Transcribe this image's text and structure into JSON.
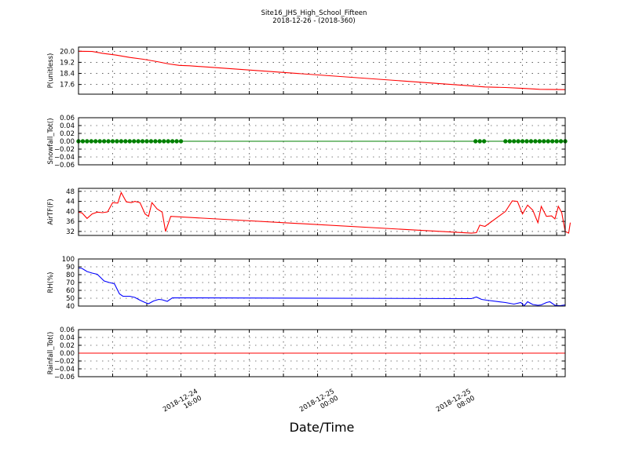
{
  "figure": {
    "title": "Site16_JHS_High_School_Fifteen",
    "subtitle": "2018-12-26 - (2018-360)",
    "xlabel": "Date/Time",
    "x_ticks": [
      {
        "x": 15.0,
        "label": [
          "2018-12-24",
          "16:00"
        ]
      },
      {
        "x": 23.0,
        "label": [
          "2018-12-25",
          "00:00"
        ]
      },
      {
        "x": 31.0,
        "label": [
          "2018-12-25",
          "08:00"
        ]
      }
    ],
    "xlim": [
      8.0,
      36.5
    ],
    "colors": {
      "red": "#ff0000",
      "green": "#008000",
      "blue": "#0000ff",
      "axis": "#000000"
    }
  },
  "chart_data": [
    {
      "type": "line",
      "ylabel": "P(unitless)",
      "ylim": [
        16.9,
        20.3
      ],
      "yticks": [
        17.6,
        18.4,
        19.2,
        20.0
      ],
      "ytick_labels": [
        "17.6",
        "18.4",
        "19.2",
        "20.0"
      ],
      "grid": true,
      "series": [
        {
          "color": "#ff0000",
          "points": [
            [
              8.0,
              20.0
            ],
            [
              8.8,
              19.98
            ],
            [
              9.4,
              19.85
            ],
            [
              10.2,
              19.72
            ],
            [
              11.0,
              19.55
            ],
            [
              11.8,
              19.42
            ],
            [
              12.6,
              19.25
            ],
            [
              13.3,
              19.08
            ],
            [
              13.9,
              18.98
            ],
            [
              14.5,
              18.95
            ],
            [
              31.0,
              17.5
            ],
            [
              31.8,
              17.42
            ],
            [
              33.0,
              17.38
            ],
            [
              34.0,
              17.32
            ],
            [
              35.0,
              17.25
            ],
            [
              36.5,
              17.23
            ]
          ]
        }
      ]
    },
    {
      "type": "line",
      "ylabel": "Snowfall_Tot()",
      "ylim": [
        -0.06,
        0.06
      ],
      "yticks": [
        -0.06,
        -0.04,
        -0.02,
        0.0,
        0.02,
        0.04,
        0.06
      ],
      "ytick_labels": [
        "−0.06",
        "−0.04",
        "−0.02",
        "0.00",
        "0.02",
        "0.04",
        "0.06"
      ],
      "grid": true,
      "series": [
        {
          "color": "#008000",
          "markers": true,
          "points": [
            [
              8.0,
              0
            ],
            [
              8.25,
              0
            ],
            [
              8.5,
              0
            ],
            [
              8.75,
              0
            ],
            [
              9.0,
              0
            ],
            [
              9.25,
              0
            ],
            [
              9.5,
              0
            ],
            [
              9.75,
              0
            ],
            [
              10.0,
              0
            ],
            [
              10.25,
              0
            ],
            [
              10.5,
              0
            ],
            [
              10.75,
              0
            ],
            [
              11.0,
              0
            ],
            [
              11.25,
              0
            ],
            [
              11.5,
              0
            ],
            [
              11.75,
              0
            ],
            [
              12.0,
              0
            ],
            [
              12.25,
              0
            ],
            [
              12.5,
              0
            ],
            [
              12.75,
              0
            ],
            [
              13.0,
              0
            ],
            [
              13.25,
              0
            ],
            [
              13.5,
              0
            ],
            [
              13.75,
              0
            ],
            [
              14.0,
              0
            ],
            [
              31.25,
              0
            ],
            [
              31.5,
              0
            ],
            [
              31.75,
              0
            ],
            [
              33.0,
              0
            ],
            [
              33.25,
              0
            ],
            [
              33.5,
              0
            ],
            [
              33.75,
              0
            ],
            [
              34.0,
              0
            ],
            [
              34.25,
              0
            ],
            [
              34.5,
              0
            ],
            [
              34.75,
              0
            ],
            [
              35.0,
              0
            ],
            [
              35.25,
              0
            ],
            [
              35.5,
              0
            ],
            [
              35.75,
              0
            ],
            [
              36.0,
              0
            ],
            [
              36.25,
              0
            ],
            [
              36.5,
              0
            ]
          ]
        }
      ]
    },
    {
      "type": "line",
      "ylabel": "AirTF(F)",
      "ylim": [
        30.4,
        49.2
      ],
      "yticks": [
        32,
        36,
        40,
        44,
        48
      ],
      "ytick_labels": [
        "32",
        "36",
        "40",
        "44",
        "48"
      ],
      "grid": true,
      "series": [
        {
          "color": "#ff0000",
          "points": [
            [
              8.0,
              39.7
            ],
            [
              8.2,
              39.4
            ],
            [
              8.5,
              37.2
            ],
            [
              8.8,
              39.0
            ],
            [
              9.1,
              39.7
            ],
            [
              9.4,
              39.5
            ],
            [
              9.7,
              39.8
            ],
            [
              10.0,
              43.5
            ],
            [
              10.3,
              43.3
            ],
            [
              10.5,
              47.5
            ],
            [
              10.8,
              43.8
            ],
            [
              11.1,
              43.5
            ],
            [
              11.3,
              44.0
            ],
            [
              11.6,
              43.5
            ],
            [
              11.9,
              39.0
            ],
            [
              12.1,
              38.0
            ],
            [
              12.3,
              43.5
            ],
            [
              12.6,
              41.0
            ],
            [
              12.9,
              39.7
            ],
            [
              13.1,
              32.0
            ],
            [
              13.4,
              38.0
            ],
            [
              31.0,
              31.3
            ],
            [
              31.3,
              31.5
            ],
            [
              31.5,
              34.5
            ],
            [
              31.8,
              34.0
            ],
            [
              33.0,
              40.0
            ],
            [
              33.4,
              44.2
            ],
            [
              33.7,
              44.0
            ],
            [
              34.0,
              39.0
            ],
            [
              34.3,
              42.5
            ],
            [
              34.6,
              40.5
            ],
            [
              34.9,
              35.5
            ],
            [
              35.1,
              42.0
            ],
            [
              35.4,
              38.0
            ],
            [
              35.7,
              38.2
            ],
            [
              35.9,
              37.0
            ],
            [
              36.1,
              42.0
            ],
            [
              36.3,
              39.5
            ],
            [
              36.5,
              32.0
            ],
            [
              36.7,
              31.3
            ],
            [
              36.8,
              35.5
            ]
          ]
        }
      ]
    },
    {
      "type": "line",
      "ylabel": "RH(%)",
      "ylim": [
        40,
        100
      ],
      "yticks": [
        40,
        50,
        60,
        70,
        80,
        90,
        100
      ],
      "ytick_labels": [
        "40",
        "50",
        "60",
        "70",
        "80",
        "90",
        "100"
      ],
      "grid": true,
      "series": [
        {
          "color": "#0000ff",
          "points": [
            [
              8.0,
              88.5
            ],
            [
              8.2,
              88.0
            ],
            [
              8.5,
              84.0
            ],
            [
              8.8,
              82.0
            ],
            [
              9.1,
              80.5
            ],
            [
              9.5,
              72.0
            ],
            [
              9.8,
              70.0
            ],
            [
              10.1,
              68.5
            ],
            [
              10.4,
              55.5
            ],
            [
              10.6,
              52.5
            ],
            [
              11.0,
              52.5
            ],
            [
              11.3,
              51.0
            ],
            [
              11.6,
              47.5
            ],
            [
              11.9,
              44.5
            ],
            [
              12.1,
              43.0
            ],
            [
              12.4,
              46.5
            ],
            [
              12.7,
              48.5
            ],
            [
              12.9,
              48.0
            ],
            [
              13.2,
              46.0
            ],
            [
              13.5,
              50.5
            ],
            [
              31.0,
              49.5
            ],
            [
              31.3,
              51.5
            ],
            [
              31.6,
              48.5
            ],
            [
              31.9,
              47.5
            ],
            [
              33.0,
              44.5
            ],
            [
              33.5,
              42.5
            ],
            [
              33.9,
              44.5
            ],
            [
              34.1,
              40.5
            ],
            [
              34.3,
              45.5
            ],
            [
              34.6,
              42.0
            ],
            [
              34.9,
              41.0
            ],
            [
              35.1,
              41.5
            ],
            [
              35.4,
              44.5
            ],
            [
              35.6,
              45.5
            ],
            [
              35.9,
              41.0
            ],
            [
              36.2,
              40.5
            ],
            [
              36.5,
              41.5
            ]
          ]
        }
      ]
    },
    {
      "type": "line",
      "ylabel": "Rainfall_Tot()",
      "ylim": [
        -0.06,
        0.06
      ],
      "yticks": [
        -0.06,
        -0.04,
        -0.02,
        0.0,
        0.02,
        0.04,
        0.06
      ],
      "ytick_labels": [
        "−0.06",
        "−0.04",
        "−0.02",
        "0.00",
        "0.02",
        "0.04",
        "0.06"
      ],
      "grid": true,
      "series": [
        {
          "color": "#ff0000",
          "points": [
            [
              8.0,
              0
            ],
            [
              36.5,
              0
            ]
          ]
        }
      ]
    }
  ]
}
